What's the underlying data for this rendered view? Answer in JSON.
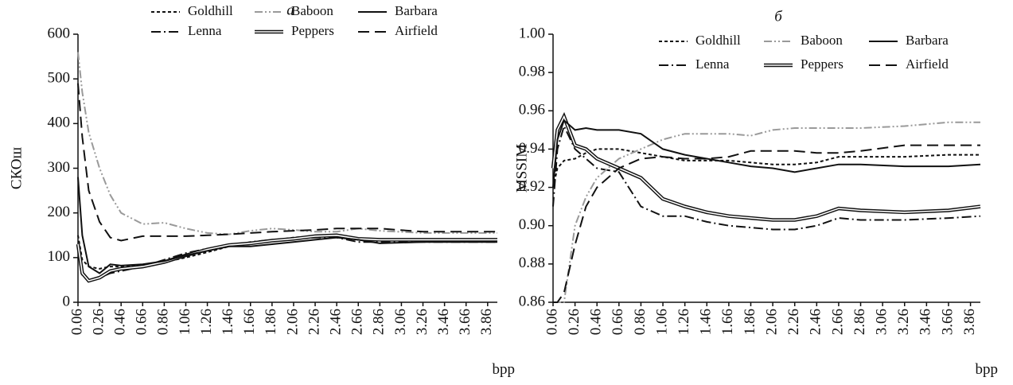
{
  "chart_data": [
    {
      "type": "line",
      "title": "а",
      "x_label": "bpp",
      "y_label": "СКОш",
      "x": [
        0.06,
        0.1,
        0.16,
        0.26,
        0.36,
        0.46,
        0.66,
        0.86,
        1.06,
        1.26,
        1.46,
        1.66,
        1.86,
        2.06,
        2.26,
        2.46,
        2.66,
        2.86,
        3.26,
        3.66,
        3.95
      ],
      "xlim": [
        0.06,
        3.95
      ],
      "xticks": [
        0.06,
        0.26,
        0.46,
        0.66,
        0.86,
        1.06,
        1.26,
        1.46,
        1.66,
        1.86,
        2.06,
        2.26,
        2.46,
        2.66,
        2.86,
        3.06,
        3.26,
        3.46,
        3.66,
        3.86
      ],
      "ylim": [
        0,
        600
      ],
      "yticks": [
        0,
        100,
        200,
        300,
        400,
        500,
        600
      ],
      "legend": "top",
      "series": [
        {
          "name": "Goldhill",
          "color": "#111111",
          "line_style": "dotted",
          "values": [
            150,
            95,
            80,
            75,
            80,
            80,
            82,
            90,
            100,
            112,
            125,
            130,
            138,
            145,
            148,
            150,
            140,
            138,
            138,
            140,
            140
          ]
        },
        {
          "name": "Lenna",
          "color": "#111111",
          "line_style": "dashdot",
          "values": [
            120,
            60,
            50,
            55,
            65,
            70,
            80,
            95,
            110,
            120,
            125,
            135,
            140,
            142,
            145,
            145,
            135,
            135,
            135,
            135,
            135
          ]
        },
        {
          "name": "Baboon",
          "color": "#9a9a9a",
          "line_style": "dashdotdot",
          "values": [
            560,
            470,
            380,
            300,
            240,
            200,
            175,
            178,
            165,
            155,
            152,
            160,
            165,
            162,
            158,
            158,
            165,
            160,
            155,
            155,
            155
          ]
        },
        {
          "name": "Peppers",
          "color": "#111111",
          "line_style": "double",
          "values": [
            130,
            65,
            48,
            55,
            70,
            75,
            80,
            90,
            105,
            118,
            128,
            132,
            138,
            142,
            148,
            150,
            142,
            140,
            140,
            140,
            140
          ]
        },
        {
          "name": "Barbara",
          "color": "#111111",
          "line_style": "solid",
          "values": [
            280,
            150,
            80,
            65,
            85,
            82,
            85,
            92,
            105,
            115,
            125,
            125,
            130,
            135,
            140,
            145,
            140,
            132,
            135,
            135,
            135
          ]
        },
        {
          "name": "Airfield",
          "color": "#111111",
          "line_style": "dashed",
          "values": [
            490,
            370,
            250,
            180,
            145,
            138,
            148,
            148,
            148,
            150,
            152,
            155,
            158,
            160,
            162,
            165,
            165,
            165,
            158,
            158,
            158
          ]
        }
      ]
    },
    {
      "type": "line",
      "title": "б",
      "x_label": "bpp",
      "y_label": "MSSIM",
      "x": [
        0.06,
        0.1,
        0.16,
        0.26,
        0.36,
        0.46,
        0.66,
        0.86,
        1.06,
        1.26,
        1.46,
        1.66,
        1.86,
        2.06,
        2.26,
        2.46,
        2.66,
        2.86,
        3.26,
        3.66,
        3.95
      ],
      "xlim": [
        0.06,
        3.95
      ],
      "xticks": [
        0.06,
        0.26,
        0.46,
        0.66,
        0.86,
        1.06,
        1.26,
        1.46,
        1.66,
        1.86,
        2.06,
        2.26,
        2.46,
        2.66,
        2.86,
        3.06,
        3.26,
        3.46,
        3.66,
        3.86
      ],
      "ylim": [
        0.86,
        1.0
      ],
      "yticks": [
        0.86,
        0.88,
        {
          "value": 0.9,
          "label": "0.90"
        },
        0.92,
        0.94,
        0.96,
        0.98,
        {
          "value": 1,
          "label": "1.00"
        }
      ],
      "legend": "top",
      "series": [
        {
          "name": "Goldhill",
          "color": "#111111",
          "line_style": "dotted",
          "values": [
            0.92,
            0.93,
            0.934,
            0.935,
            0.938,
            0.94,
            0.94,
            0.938,
            0.936,
            0.934,
            0.934,
            0.934,
            0.933,
            0.932,
            0.932,
            0.933,
            0.936,
            0.936,
            0.936,
            0.937,
            0.937
          ]
        },
        {
          "name": "Lenna",
          "color": "#111111",
          "line_style": "dashdot",
          "values": [
            0.91,
            0.94,
            0.952,
            0.94,
            0.935,
            0.93,
            0.928,
            0.91,
            0.905,
            0.905,
            0.902,
            0.9,
            0.899,
            0.898,
            0.898,
            0.9,
            0.904,
            0.903,
            0.903,
            0.904,
            0.905
          ]
        },
        {
          "name": "Baboon",
          "color": "#9a9a9a",
          "line_style": "dashdotdot",
          "values": [
            0.86,
            0.86,
            0.86,
            0.9,
            0.915,
            0.925,
            0.935,
            0.94,
            0.945,
            0.948,
            0.948,
            0.948,
            0.947,
            0.95,
            0.951,
            0.951,
            0.951,
            0.951,
            0.952,
            0.954,
            0.954
          ]
        },
        {
          "name": "Peppers",
          "color": "#111111",
          "line_style": "double",
          "values": [
            0.93,
            0.95,
            0.957,
            0.942,
            0.94,
            0.935,
            0.93,
            0.925,
            0.914,
            0.91,
            0.907,
            0.905,
            0.904,
            0.903,
            0.903,
            0.905,
            0.909,
            0.908,
            0.907,
            0.908,
            0.91
          ]
        },
        {
          "name": "Barbara",
          "color": "#111111",
          "line_style": "solid",
          "values": [
            0.92,
            0.945,
            0.955,
            0.95,
            0.951,
            0.95,
            0.95,
            0.948,
            0.94,
            0.937,
            0.935,
            0.933,
            0.931,
            0.93,
            0.928,
            0.93,
            0.932,
            0.932,
            0.931,
            0.931,
            0.932
          ]
        },
        {
          "name": "Airfield",
          "color": "#111111",
          "line_style": "dashed",
          "values": [
            0.86,
            0.86,
            0.865,
            0.89,
            0.91,
            0.92,
            0.93,
            0.935,
            0.936,
            0.935,
            0.935,
            0.936,
            0.939,
            0.939,
            0.939,
            0.938,
            0.938,
            0.939,
            0.942,
            0.942,
            0.942
          ]
        }
      ]
    }
  ]
}
